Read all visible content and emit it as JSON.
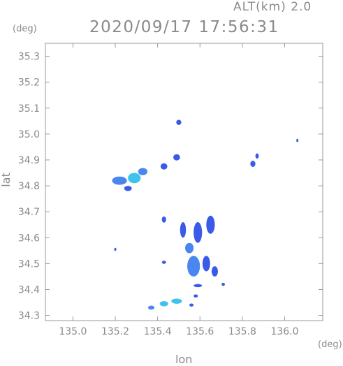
{
  "header": {
    "altitude_label": "ALT(km) 2.0",
    "timestamp": "2020/09/17 17:56:31"
  },
  "chart_data": {
    "type": "heatmap",
    "title": "2020/09/17 17:56:31",
    "subtitle": "ALT(km) 2.0",
    "xlabel": "lon",
    "ylabel": "lat",
    "x_unit": "(deg)",
    "y_unit": "(deg)",
    "xlim": [
      134.87,
      136.18
    ],
    "ylim": [
      34.28,
      35.35
    ],
    "x_ticks": [
      "135.0",
      "135.2",
      "135.4",
      "135.6",
      "135.8",
      "136.0"
    ],
    "x_tick_values": [
      135.0,
      135.2,
      135.4,
      135.6,
      135.8,
      136.0
    ],
    "y_ticks": [
      "34.3",
      "34.4",
      "34.5",
      "34.6",
      "34.7",
      "34.8",
      "34.9",
      "35.0",
      "35.1",
      "35.2",
      "35.3"
    ],
    "y_tick_values": [
      34.3,
      34.4,
      34.5,
      34.6,
      34.7,
      34.8,
      34.9,
      35.0,
      35.1,
      35.2,
      35.3
    ],
    "grid": false,
    "colors": {
      "weak": "#3a5ae8",
      "medium": "#4a86f0",
      "strong": "#3ec2ee",
      "axis": "#9a9a9a"
    },
    "echoes": [
      {
        "lon": 135.5,
        "lat": 35.045,
        "rx": 0.012,
        "ry": 0.01,
        "level": "weak"
      },
      {
        "lon": 135.22,
        "lat": 34.82,
        "rx": 0.035,
        "ry": 0.016,
        "level": "medium"
      },
      {
        "lon": 135.29,
        "lat": 34.83,
        "rx": 0.03,
        "ry": 0.02,
        "level": "strong"
      },
      {
        "lon": 135.33,
        "lat": 34.855,
        "rx": 0.022,
        "ry": 0.014,
        "level": "medium"
      },
      {
        "lon": 135.26,
        "lat": 34.79,
        "rx": 0.018,
        "ry": 0.01,
        "level": "weak"
      },
      {
        "lon": 135.43,
        "lat": 34.875,
        "rx": 0.016,
        "ry": 0.012,
        "level": "weak"
      },
      {
        "lon": 135.49,
        "lat": 34.91,
        "rx": 0.016,
        "ry": 0.012,
        "level": "weak"
      },
      {
        "lon": 135.85,
        "lat": 34.885,
        "rx": 0.012,
        "ry": 0.012,
        "level": "weak"
      },
      {
        "lon": 135.87,
        "lat": 34.915,
        "rx": 0.008,
        "ry": 0.01,
        "level": "weak"
      },
      {
        "lon": 136.06,
        "lat": 34.975,
        "rx": 0.004,
        "ry": 0.006,
        "level": "weak"
      },
      {
        "lon": 135.43,
        "lat": 34.67,
        "rx": 0.01,
        "ry": 0.012,
        "level": "weak"
      },
      {
        "lon": 135.52,
        "lat": 34.63,
        "rx": 0.014,
        "ry": 0.03,
        "level": "weak"
      },
      {
        "lon": 135.59,
        "lat": 34.62,
        "rx": 0.02,
        "ry": 0.04,
        "level": "weak"
      },
      {
        "lon": 135.65,
        "lat": 34.65,
        "rx": 0.02,
        "ry": 0.035,
        "level": "weak"
      },
      {
        "lon": 135.55,
        "lat": 34.56,
        "rx": 0.02,
        "ry": 0.02,
        "level": "medium"
      },
      {
        "lon": 135.57,
        "lat": 34.49,
        "rx": 0.03,
        "ry": 0.04,
        "level": "medium"
      },
      {
        "lon": 135.63,
        "lat": 34.5,
        "rx": 0.018,
        "ry": 0.03,
        "level": "weak"
      },
      {
        "lon": 135.67,
        "lat": 34.47,
        "rx": 0.015,
        "ry": 0.02,
        "level": "weak"
      },
      {
        "lon": 135.43,
        "lat": 34.505,
        "rx": 0.01,
        "ry": 0.006,
        "level": "weak"
      },
      {
        "lon": 135.2,
        "lat": 34.555,
        "rx": 0.004,
        "ry": 0.006,
        "level": "weak"
      },
      {
        "lon": 135.59,
        "lat": 34.415,
        "rx": 0.02,
        "ry": 0.006,
        "level": "weak"
      },
      {
        "lon": 135.71,
        "lat": 34.42,
        "rx": 0.008,
        "ry": 0.006,
        "level": "weak"
      },
      {
        "lon": 135.58,
        "lat": 34.375,
        "rx": 0.01,
        "ry": 0.006,
        "level": "weak"
      },
      {
        "lon": 135.37,
        "lat": 34.33,
        "rx": 0.015,
        "ry": 0.008,
        "level": "medium"
      },
      {
        "lon": 135.43,
        "lat": 34.345,
        "rx": 0.02,
        "ry": 0.01,
        "level": "strong"
      },
      {
        "lon": 135.49,
        "lat": 34.355,
        "rx": 0.025,
        "ry": 0.01,
        "level": "strong"
      },
      {
        "lon": 135.56,
        "lat": 34.34,
        "rx": 0.01,
        "ry": 0.006,
        "level": "weak"
      }
    ]
  }
}
